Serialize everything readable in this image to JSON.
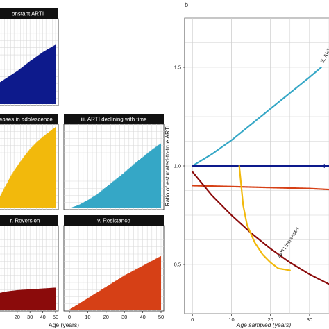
{
  "panel_letter_b": "b",
  "chart_data": [
    {
      "type": "area",
      "panel": "top-left",
      "title": "onstant ARTI",
      "color": "#0d1a8c",
      "x_range": [
        0,
        50
      ],
      "y_range": [
        0,
        1
      ],
      "x": [
        0,
        10,
        20,
        30,
        40,
        50
      ],
      "y": [
        0.2,
        0.3,
        0.4,
        0.52,
        0.63,
        0.72
      ]
    },
    {
      "type": "area",
      "panel": "mid-left",
      "title": "reases in adolescence",
      "color": "#f2b90c",
      "x_range": [
        0,
        50
      ],
      "y_range": [
        0,
        1
      ],
      "x": [
        0,
        5,
        10,
        15,
        20,
        25,
        30,
        35,
        40,
        45,
        50
      ],
      "y": [
        0.0,
        0.1,
        0.25,
        0.4,
        0.52,
        0.63,
        0.73,
        0.81,
        0.88,
        0.94,
        1.0
      ]
    },
    {
      "type": "area",
      "panel": "mid-right",
      "title": "iii. ARTI declining with time",
      "color": "#35a7c6",
      "x_range": [
        0,
        50
      ],
      "y_range": [
        0,
        1
      ],
      "x": [
        0,
        5,
        10,
        15,
        20,
        25,
        30,
        35,
        40,
        45,
        50
      ],
      "y": [
        0.0,
        0.04,
        0.1,
        0.17,
        0.26,
        0.35,
        0.44,
        0.54,
        0.63,
        0.72,
        0.8
      ]
    },
    {
      "type": "area",
      "panel": "bottom-left",
      "title": "r. Reversion",
      "color": "#8b0b0b",
      "x_range": [
        0,
        50
      ],
      "y_range": [
        0,
        1
      ],
      "x": [
        0,
        10,
        20,
        30,
        40,
        50
      ],
      "y": [
        0.18,
        0.22,
        0.24,
        0.25,
        0.26,
        0.27
      ],
      "x_ticks": [
        20,
        30,
        40,
        50
      ],
      "xlabel": "Age (years)"
    },
    {
      "type": "area",
      "panel": "bottom-right",
      "title": "v. Resistance",
      "color": "#d64016",
      "x_range": [
        0,
        50
      ],
      "y_range": [
        0,
        1
      ],
      "x": [
        0,
        5,
        10,
        15,
        20,
        25,
        30,
        35,
        40,
        45,
        50
      ],
      "y": [
        0.0,
        0.07,
        0.14,
        0.21,
        0.28,
        0.35,
        0.42,
        0.48,
        0.54,
        0.6,
        0.66
      ],
      "x_ticks": [
        0,
        10,
        20,
        30,
        40,
        50
      ]
    },
    {
      "type": "line",
      "panel": "b",
      "xlabel": "Age sampled (years)",
      "ylabel": "Ratio of estimated-to-true ARTI",
      "x_range": [
        -2,
        35
      ],
      "y_range": [
        0.25,
        1.75
      ],
      "x_ticks": [
        0,
        10,
        20,
        30
      ],
      "y_ticks": [
        0.5,
        1.0,
        1.5
      ],
      "y_tick_labels": [
        "0.5",
        "1.0",
        "1.5"
      ],
      "grid": true,
      "series": [
        {
          "name": "iii. ARTI",
          "color": "#35a7c6",
          "x": [
            0,
            5,
            10,
            15,
            20,
            25,
            30,
            33
          ],
          "y": [
            1.0,
            1.06,
            1.13,
            1.21,
            1.29,
            1.37,
            1.45,
            1.5
          ]
        },
        {
          "name": "",
          "color": "#0d1a8c",
          "x": [
            0,
            10,
            20,
            30,
            35
          ],
          "y": [
            1.0,
            1.0,
            1.0,
            1.0,
            1.0
          ]
        },
        {
          "name": "",
          "color": "#d64016",
          "x": [
            0,
            10,
            20,
            30,
            35
          ],
          "y": [
            0.9,
            0.895,
            0.89,
            0.885,
            0.88
          ]
        },
        {
          "name": "",
          "color": "#8b0b0b",
          "x": [
            0,
            5,
            10,
            15,
            20,
            25,
            30,
            35
          ],
          "y": [
            0.97,
            0.85,
            0.75,
            0.66,
            0.58,
            0.51,
            0.45,
            0.4
          ]
        },
        {
          "name": "ARTI increases",
          "color": "#f2b90c",
          "x": [
            12,
            12.5,
            13,
            14,
            16,
            18,
            20,
            22,
            25
          ],
          "y": [
            1.0,
            0.9,
            0.8,
            0.7,
            0.61,
            0.55,
            0.51,
            0.48,
            0.47
          ]
        }
      ]
    }
  ]
}
